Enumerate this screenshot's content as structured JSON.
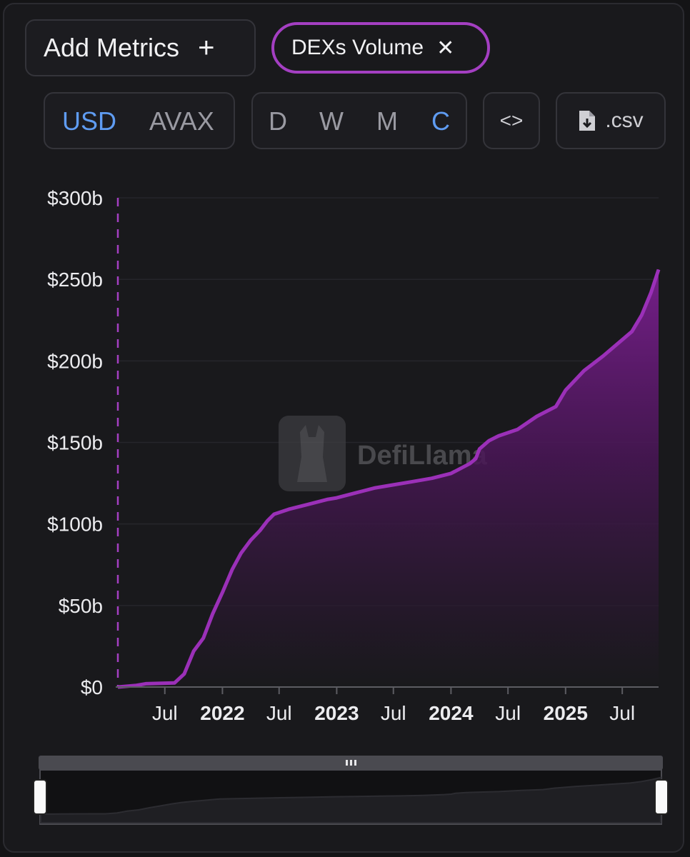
{
  "controls": {
    "add_metrics_label": "Add Metrics",
    "add_icon": "+",
    "metric_chip_label": "DEXs Volume",
    "metric_chip_close": "✕",
    "currency_options": [
      "USD",
      "AVAX"
    ],
    "currency_selected": "USD",
    "interval_options": [
      "D",
      "W",
      "M",
      "C"
    ],
    "interval_selected": "C",
    "embed_icon": "<>",
    "csv_label": ".csv"
  },
  "watermark": {
    "text": "DefiLlama"
  },
  "colors": {
    "accent": "#a43fc2",
    "line": "#9b30b8",
    "selected": "#5f9cf2",
    "background": "#19191c"
  },
  "chart_data": {
    "type": "area",
    "title": "",
    "xlabel": "",
    "ylabel": "",
    "ylim": [
      0,
      300
    ],
    "y_unit": "$b",
    "y_ticks": [
      0,
      50,
      100,
      150,
      200,
      250,
      300
    ],
    "y_tick_labels": [
      "$0",
      "$50b",
      "$100b",
      "$150b",
      "$200b",
      "$250b",
      "$300b"
    ],
    "x_ticks": [
      {
        "date": "2021-07-01",
        "label": "Jul",
        "year": false
      },
      {
        "date": "2022-01-01",
        "label": "2022",
        "year": true
      },
      {
        "date": "2022-07-01",
        "label": "Jul",
        "year": false
      },
      {
        "date": "2023-01-01",
        "label": "2023",
        "year": true
      },
      {
        "date": "2023-07-01",
        "label": "Jul",
        "year": false
      },
      {
        "date": "2024-01-01",
        "label": "2024",
        "year": true
      },
      {
        "date": "2024-07-01",
        "label": "Jul",
        "year": false
      },
      {
        "date": "2025-01-01",
        "label": "2025",
        "year": true
      },
      {
        "date": "2025-07-01",
        "label": "Jul",
        "year": false
      }
    ],
    "series": [
      {
        "points": [
          [
            "2021-02-01",
            0
          ],
          [
            "2021-04-01",
            1
          ],
          [
            "2021-05-01",
            2
          ],
          [
            "2021-08-01",
            2.5
          ],
          [
            "2021-09-01",
            8
          ],
          [
            "2021-10-01",
            22
          ],
          [
            "2021-11-01",
            30
          ],
          [
            "2021-12-01",
            45
          ],
          [
            "2022-01-01",
            58
          ],
          [
            "2022-02-01",
            72
          ],
          [
            "2022-03-01",
            82
          ],
          [
            "2022-04-01",
            90
          ],
          [
            "2022-05-01",
            96
          ],
          [
            "2022-05-25",
            102
          ],
          [
            "2022-06-15",
            106
          ],
          [
            "2022-08-01",
            109
          ],
          [
            "2022-10-01",
            112
          ],
          [
            "2022-12-01",
            115
          ],
          [
            "2023-01-01",
            116
          ],
          [
            "2023-03-01",
            119
          ],
          [
            "2023-05-01",
            122
          ],
          [
            "2023-07-01",
            124
          ],
          [
            "2023-09-01",
            126
          ],
          [
            "2023-11-01",
            128
          ],
          [
            "2024-01-01",
            131
          ],
          [
            "2024-03-01",
            137
          ],
          [
            "2024-03-20",
            140
          ],
          [
            "2024-04-01",
            146
          ],
          [
            "2024-05-01",
            151
          ],
          [
            "2024-06-01",
            154
          ],
          [
            "2024-08-01",
            158
          ],
          [
            "2024-10-01",
            166
          ],
          [
            "2024-12-01",
            172
          ],
          [
            "2025-01-01",
            182
          ],
          [
            "2025-03-01",
            194
          ],
          [
            "2025-05-01",
            203
          ],
          [
            "2025-07-01",
            213
          ],
          [
            "2025-08-01",
            218
          ],
          [
            "2025-09-01",
            228
          ],
          [
            "2025-10-01",
            242
          ],
          [
            "2025-10-25",
            256
          ]
        ]
      }
    ],
    "grid": true,
    "legend": "none"
  }
}
